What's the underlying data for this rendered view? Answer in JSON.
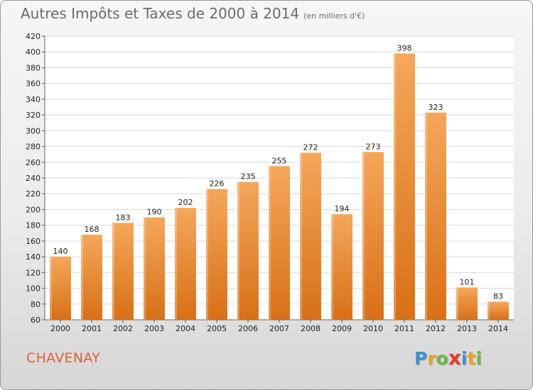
{
  "title": "Autres Impôts et Taxes de 2000 à 2014",
  "subtitle": "(en milliers d'€)",
  "place": "CHAVENAY",
  "logo": {
    "letters": [
      "P",
      "r",
      "o",
      "x",
      "i",
      "t",
      "i"
    ],
    "colors": [
      "#3b8fd6",
      "#f0a020",
      "#6ab83a",
      "#e83a2a",
      "#3b8fd6",
      "#f0a020",
      "#6ab83a"
    ]
  },
  "colors": {
    "bar_top": "#f5a75a",
    "bar_bottom": "#d87016",
    "grid": "#d9d9d9"
  },
  "chart_data": {
    "type": "bar",
    "categories": [
      "2000",
      "2001",
      "2002",
      "2003",
      "2004",
      "2005",
      "2006",
      "2007",
      "2008",
      "2009",
      "2010",
      "2011",
      "2012",
      "2013",
      "2014"
    ],
    "values": [
      140,
      168,
      183,
      190,
      202,
      226,
      235,
      255,
      272,
      194,
      273,
      398,
      323,
      101,
      83
    ],
    "ylim": [
      60,
      420
    ],
    "yticks": [
      60,
      80,
      100,
      120,
      140,
      160,
      180,
      200,
      220,
      240,
      260,
      280,
      300,
      320,
      340,
      360,
      380,
      400,
      420
    ],
    "grid": true
  }
}
